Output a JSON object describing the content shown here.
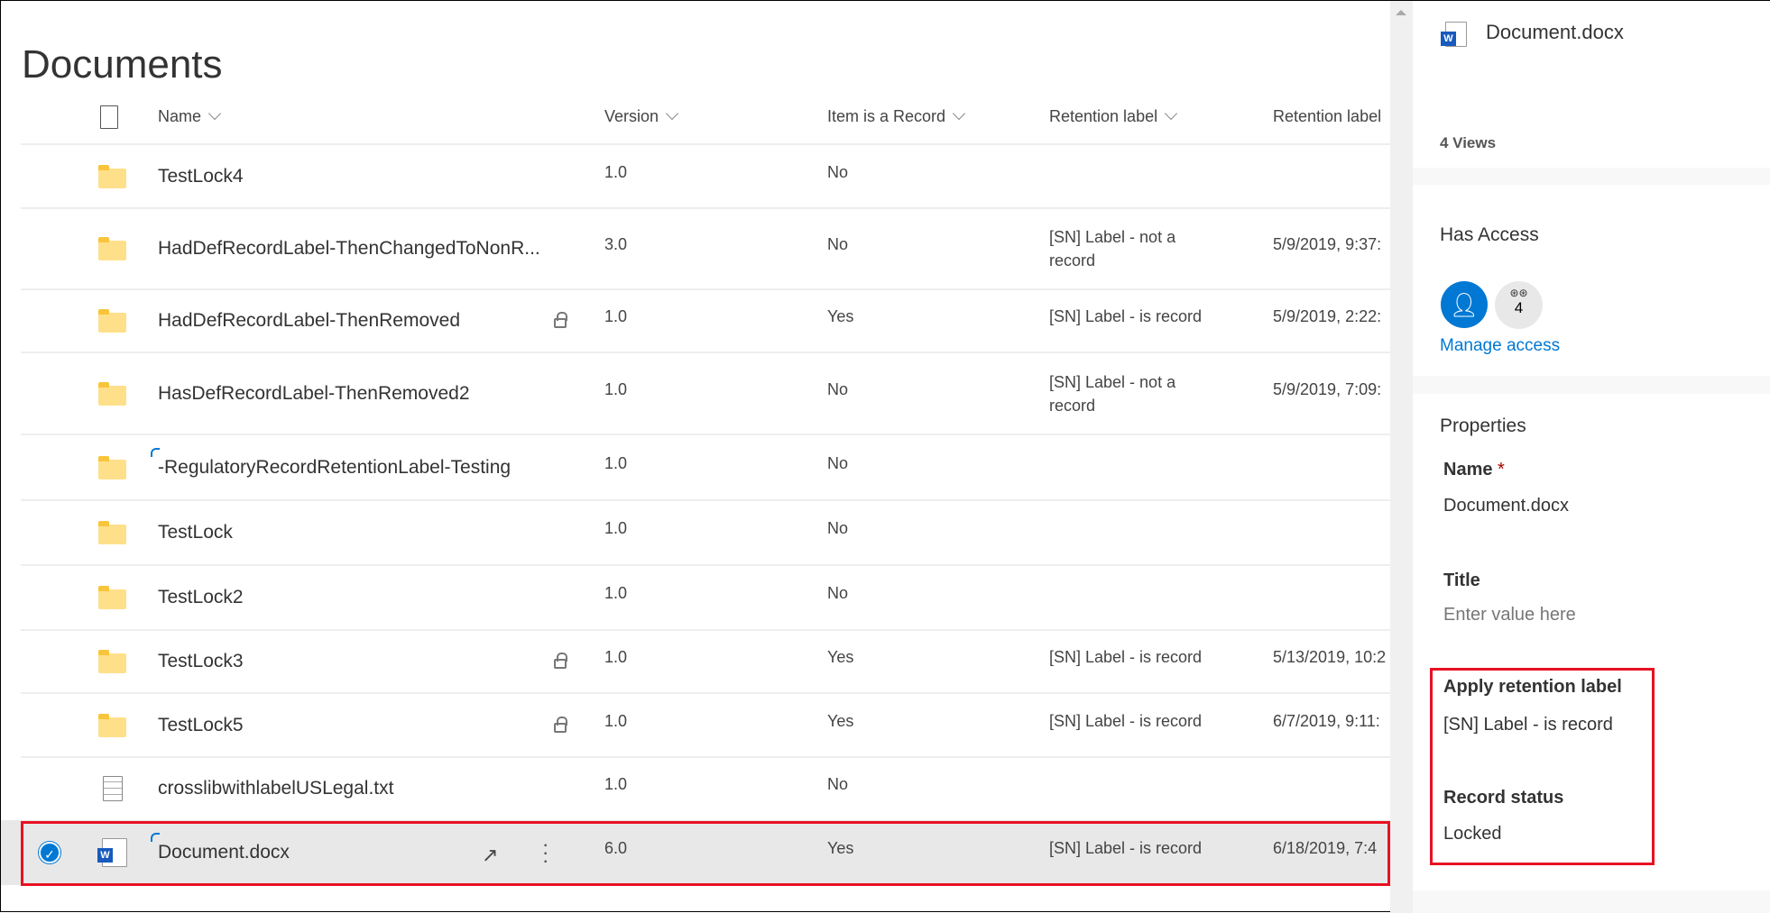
{
  "page_title": "Documents",
  "columns": [
    "Name",
    "Version",
    "Item is a Record",
    "Retention label",
    "Retention label"
  ],
  "rows": [
    {
      "name": "TestLock4",
      "type": "folder",
      "version": "1.0",
      "record": "No",
      "label": "",
      "date": "",
      "locked": false
    },
    {
      "name": "HadDefRecordLabel-ThenChangedToNonR...",
      "type": "folder",
      "version": "3.0",
      "record": "No",
      "label": "[SN] Label - not a record",
      "date": "5/9/2019, 9:37:",
      "locked": false
    },
    {
      "name": "HadDefRecordLabel-ThenRemoved",
      "type": "folder",
      "version": "1.0",
      "record": "Yes",
      "label": "[SN] Label - is record",
      "date": "5/9/2019, 2:22:",
      "locked": true
    },
    {
      "name": "HasDefRecordLabel-ThenRemoved2",
      "type": "folder",
      "version": "1.0",
      "record": "No",
      "label": "[SN] Label - not a record",
      "date": "5/9/2019, 7:09:",
      "locked": false
    },
    {
      "name": "-RegulatoryRecordRetentionLabel-Testing",
      "type": "folder",
      "version": "1.0",
      "record": "No",
      "label": "",
      "date": "",
      "locked": false,
      "syncing": true
    },
    {
      "name": "TestLock",
      "type": "folder",
      "version": "1.0",
      "record": "No",
      "label": "",
      "date": "",
      "locked": false
    },
    {
      "name": "TestLock2",
      "type": "folder",
      "version": "1.0",
      "record": "No",
      "label": "",
      "date": "",
      "locked": false
    },
    {
      "name": "TestLock3",
      "type": "folder",
      "version": "1.0",
      "record": "Yes",
      "label": "[SN] Label - is record",
      "date": "5/13/2019, 10:2",
      "locked": true
    },
    {
      "name": "TestLock5",
      "type": "folder",
      "version": "1.0",
      "record": "Yes",
      "label": "[SN] Label - is record",
      "date": "6/7/2019, 9:11:",
      "locked": true
    },
    {
      "name": "crosslibwithlabelUSLegal.txt",
      "type": "txt",
      "version": "1.0",
      "record": "No",
      "label": "",
      "date": "",
      "locked": false
    },
    {
      "name": "Document.docx",
      "type": "docx",
      "version": "6.0",
      "record": "Yes",
      "label": "[SN] Label - is record",
      "date": "6/18/2019, 7:4",
      "selected": true,
      "syncing": true
    }
  ],
  "panel": {
    "file_name": "Document.docx",
    "views": "4 Views",
    "has_access": "Has Access",
    "access_count": "4",
    "manage_access": "Manage access",
    "properties": "Properties",
    "name_label": "Name",
    "required_mark": "*",
    "name_value": "Document.docx",
    "title_label": "Title",
    "title_placeholder": "Enter value here",
    "retention_label": "Apply retention label",
    "retention_value": "[SN] Label - is record",
    "record_status_label": "Record status",
    "record_status_value": "Locked"
  },
  "colors": {
    "accent": "#0078d4",
    "highlight": "#e81123",
    "selected_row": "#e8e8e8"
  }
}
